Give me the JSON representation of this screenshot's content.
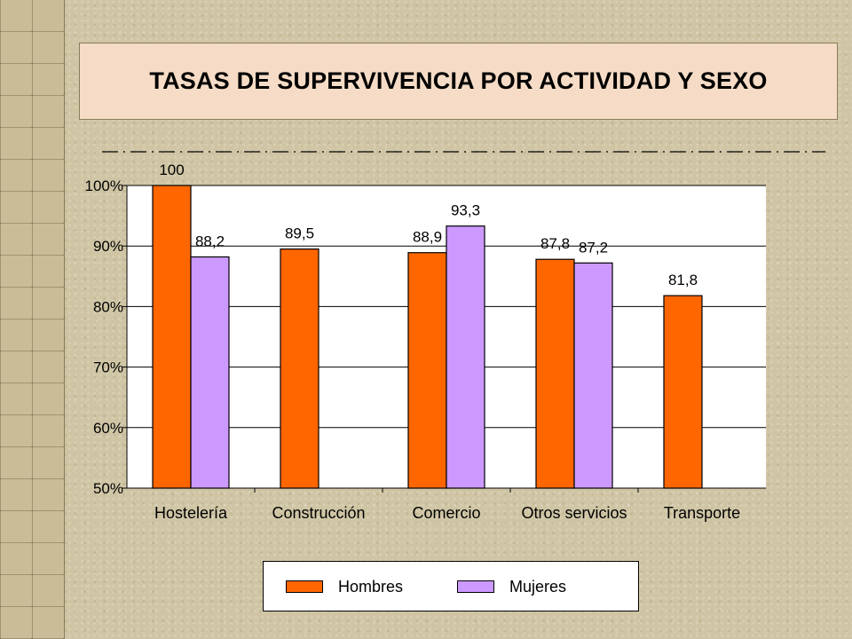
{
  "chart_data": {
    "type": "bar",
    "title": "TASAS DE SUPERVIVENCIA POR ACTIVIDAD Y SEXO",
    "categories": [
      "Hostelería",
      "Construcción",
      "Comercio",
      "Otros servicios",
      "Transporte"
    ],
    "series": [
      {
        "name": "Hombres",
        "color": "#ff6600",
        "values": [
          100,
          89.5,
          88.9,
          87.8,
          81.8
        ],
        "labels": [
          "100",
          "89,5",
          "88,9",
          "87,8",
          "81,8"
        ]
      },
      {
        "name": "Mujeres",
        "color": "#cc99ff",
        "values": [
          88.2,
          null,
          93.3,
          87.2,
          null
        ],
        "labels": [
          "88,2",
          "",
          "93,3",
          "87,2",
          ""
        ]
      }
    ],
    "ylim": [
      50,
      100
    ],
    "yticks": [
      50,
      60,
      70,
      80,
      90,
      100
    ],
    "ytick_labels": [
      "50%",
      "60%",
      "70%",
      "80%",
      "90%",
      "100%"
    ],
    "grid": true,
    "legend_position": "bottom"
  }
}
